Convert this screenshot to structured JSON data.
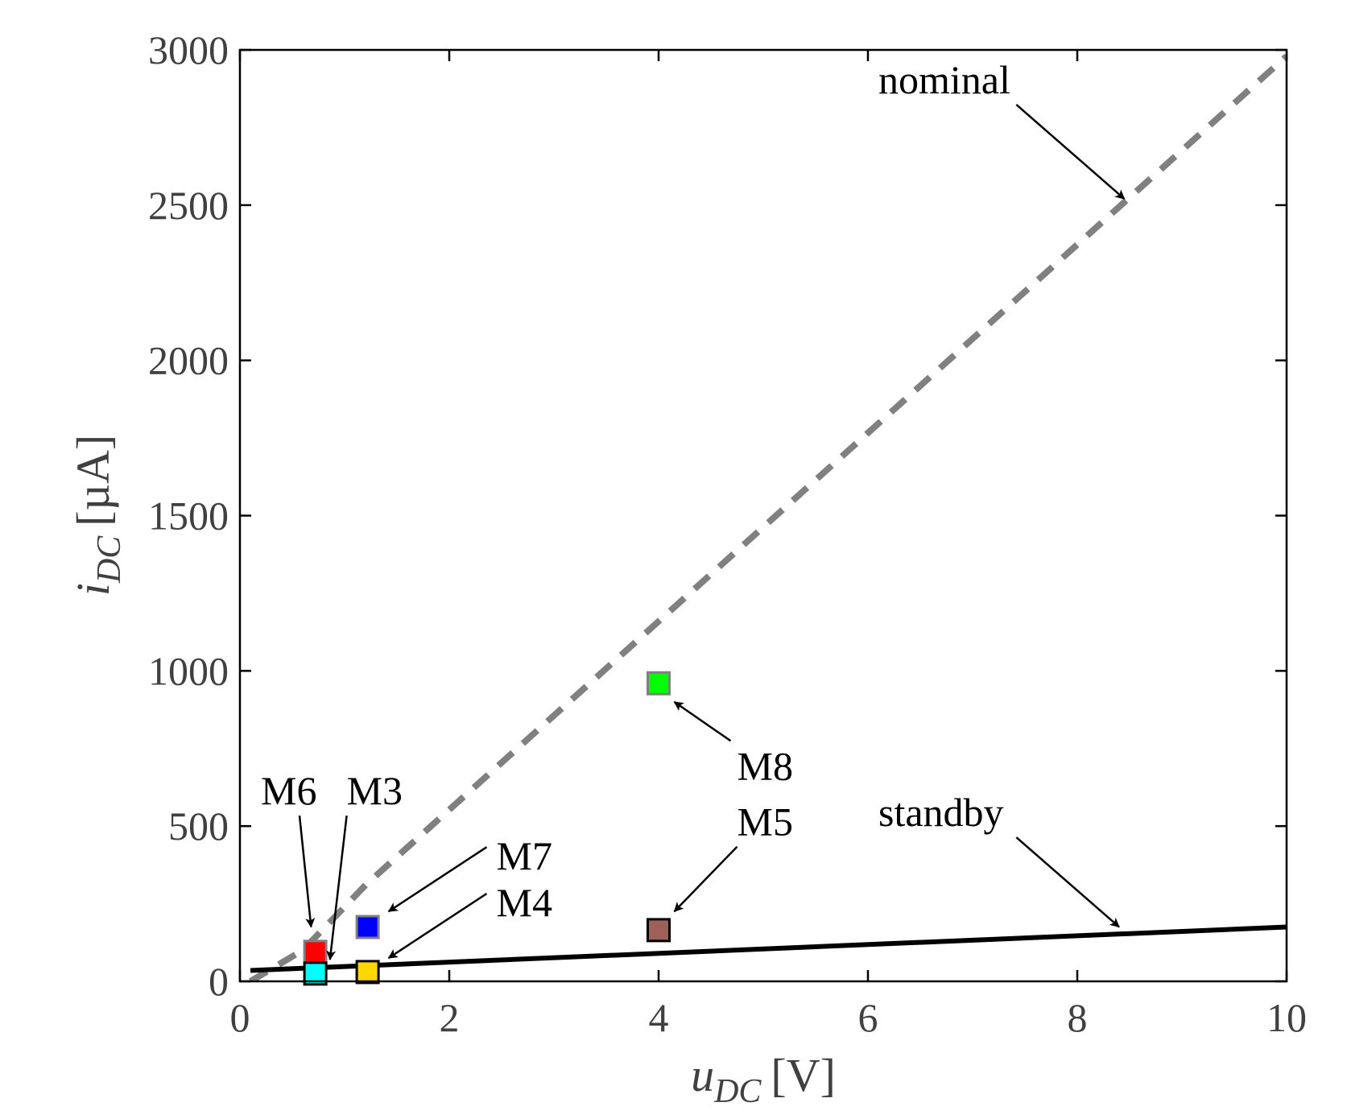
{
  "chart_data": {
    "type": "line",
    "xlabel": {
      "var": "u",
      "sub": "DC",
      "unit": "[V]"
    },
    "ylabel": {
      "var": "i",
      "sub": "DC",
      "unit": "[µA]"
    },
    "xlim": [
      0,
      10
    ],
    "ylim": [
      0,
      3000
    ],
    "xticks": [
      0,
      2,
      4,
      6,
      8,
      10
    ],
    "yticks": [
      0,
      500,
      1000,
      1500,
      2000,
      2500,
      3000
    ],
    "grid": false,
    "series": [
      {
        "name": "nominal",
        "style": "dashed",
        "color": "#808080",
        "x": [
          0.1,
          0.6,
          1.2,
          10
        ],
        "y": [
          0,
          100,
          310,
          2980
        ]
      },
      {
        "name": "standby",
        "style": "solid",
        "color": "#000000",
        "x": [
          0.1,
          10
        ],
        "y": [
          35,
          175
        ]
      }
    ],
    "markers": [
      {
        "name": "M6",
        "x": 0.72,
        "y": 95,
        "color": "#ff0000",
        "edge": "#808080"
      },
      {
        "name": "M3",
        "x": 0.72,
        "y": 25,
        "color": "#00ffff",
        "edge": "#000000"
      },
      {
        "name": "M7",
        "x": 1.22,
        "y": 175,
        "color": "#0000ff",
        "edge": "#808080"
      },
      {
        "name": "M4",
        "x": 1.22,
        "y": 30,
        "color": "#ffd700",
        "edge": "#000000"
      },
      {
        "name": "M8",
        "x": 4.0,
        "y": 960,
        "color": "#00ff00",
        "edge": "#808080"
      },
      {
        "name": "M5",
        "x": 4.0,
        "y": 165,
        "color": "#a0605a",
        "edge": "#000000"
      }
    ],
    "annotations": [
      {
        "text": "nominal",
        "x": 6.1,
        "y": 2860,
        "arrow_to": [
          8.45,
          2520
        ]
      },
      {
        "text": "standby",
        "x": 6.1,
        "y": 500,
        "arrow_to": [
          8.4,
          175
        ]
      },
      {
        "text": "M6",
        "x": 0.2,
        "y": 570,
        "arrow_to": [
          0.68,
          175
        ]
      },
      {
        "text": "M3",
        "x": 1.02,
        "y": 570,
        "arrow_to": [
          0.86,
          70
        ]
      },
      {
        "text": "M7",
        "x": 2.45,
        "y": 360,
        "arrow_to": [
          1.42,
          225
        ]
      },
      {
        "text": "M4",
        "x": 2.45,
        "y": 210,
        "arrow_to": [
          1.42,
          75
        ]
      },
      {
        "text": "M8",
        "x": 4.75,
        "y": 650,
        "arrow_to": [
          4.15,
          900
        ]
      },
      {
        "text": "M5",
        "x": 4.75,
        "y": 470,
        "arrow_to": [
          4.15,
          225
        ]
      }
    ]
  }
}
